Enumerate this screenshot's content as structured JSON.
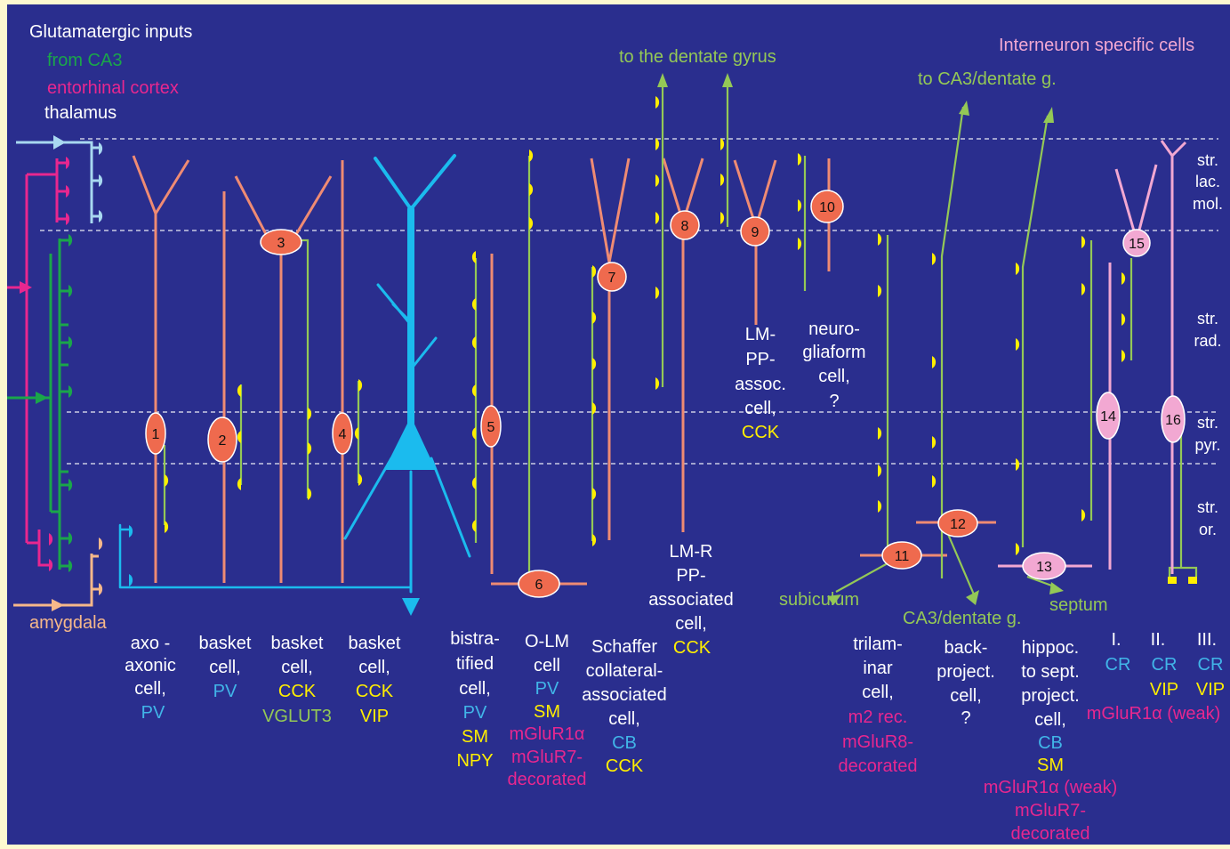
{
  "colors": {
    "background": "#2a2e8e",
    "border": "#fdf9d0",
    "interneuron": "#ef8b73",
    "soma": "#ef6a4e",
    "axon": "#94c856",
    "bouton": "#ffee00",
    "pyramidal": "#1bbbee",
    "pink_cell": "#f2a8d2",
    "ca3": "#1aa64a",
    "entorhinal": "#e8278f",
    "thalamus": "#a8d8f0",
    "amygdala": "#f6b88a",
    "text_white": "#ffffff",
    "text_cyan": "#41b5e8",
    "text_yellow": "#ffee00",
    "text_green": "#94c856",
    "text_magenta": "#e8278f",
    "text_pink": "#f2a8d2"
  },
  "inputs": {
    "title": "Glutamatergic inputs",
    "ca3": "from CA3",
    "entorhinal": "entorhinal cortex",
    "thalamus": "thalamus",
    "amygdala": "amygdala"
  },
  "headings": {
    "dentate": "to the dentate gyrus",
    "ca3_dentate_top": "to CA3/dentate g.",
    "is_cells": "Interneuron specific cells",
    "subiculum": "subiculum",
    "ca3_dentate_bottom": "CA3/dentate g.",
    "septum": "septum"
  },
  "layers": [
    "str.",
    "lac.",
    "mol.",
    "str.",
    "rad.",
    "str.",
    "pyr.",
    "str.",
    "or."
  ],
  "numbers": [
    "1",
    "2",
    "3",
    "4",
    "5",
    "6",
    "7",
    "8",
    "9",
    "10",
    "11",
    "12",
    "13",
    "14",
    "15",
    "16"
  ],
  "labels": {
    "c1": [
      "axo -",
      "axonic",
      "cell,",
      "PV"
    ],
    "c2": [
      "basket",
      "cell,",
      "PV"
    ],
    "c3": [
      "basket",
      "cell,",
      "CCK",
      "VGLUT3"
    ],
    "c4": [
      "basket",
      "cell,",
      "CCK",
      "VIP"
    ],
    "c5": [
      "bistra-",
      "tified",
      "cell,",
      "PV",
      "SM",
      "NPY"
    ],
    "c6": [
      "O-LM",
      "cell",
      "PV",
      "SM",
      "mGluR1α",
      "mGluR7-",
      "decorated"
    ],
    "c7": [
      "Schaffer",
      "collateral-",
      "associated",
      "cell,",
      "CB",
      "CCK"
    ],
    "c8": [
      "LM-R",
      "PP-",
      "associated",
      "cell,",
      "CCK"
    ],
    "c9": [
      "LM-",
      "PP-",
      "assoc.",
      "cell,",
      "CCK"
    ],
    "c10": [
      "neuro-",
      "gliaform",
      "cell,",
      "?"
    ],
    "c11": [
      "trilam-",
      "inar",
      "cell,",
      "m2 rec.",
      "mGluR8-",
      "decorated"
    ],
    "c12": [
      "back-",
      "project.",
      "cell,",
      "?"
    ],
    "c13": [
      "hippoc.",
      "to sept.",
      "project.",
      "cell,",
      "CB",
      "SM",
      "mGluR1α (weak)",
      "mGluR7-",
      "decorated"
    ],
    "is_I": [
      "I.",
      "CR"
    ],
    "is_II": [
      "II.",
      "CR",
      "VIP"
    ],
    "is_III": [
      "III.",
      "CR",
      "VIP"
    ],
    "is_common": "mGluR1α (weak)"
  }
}
